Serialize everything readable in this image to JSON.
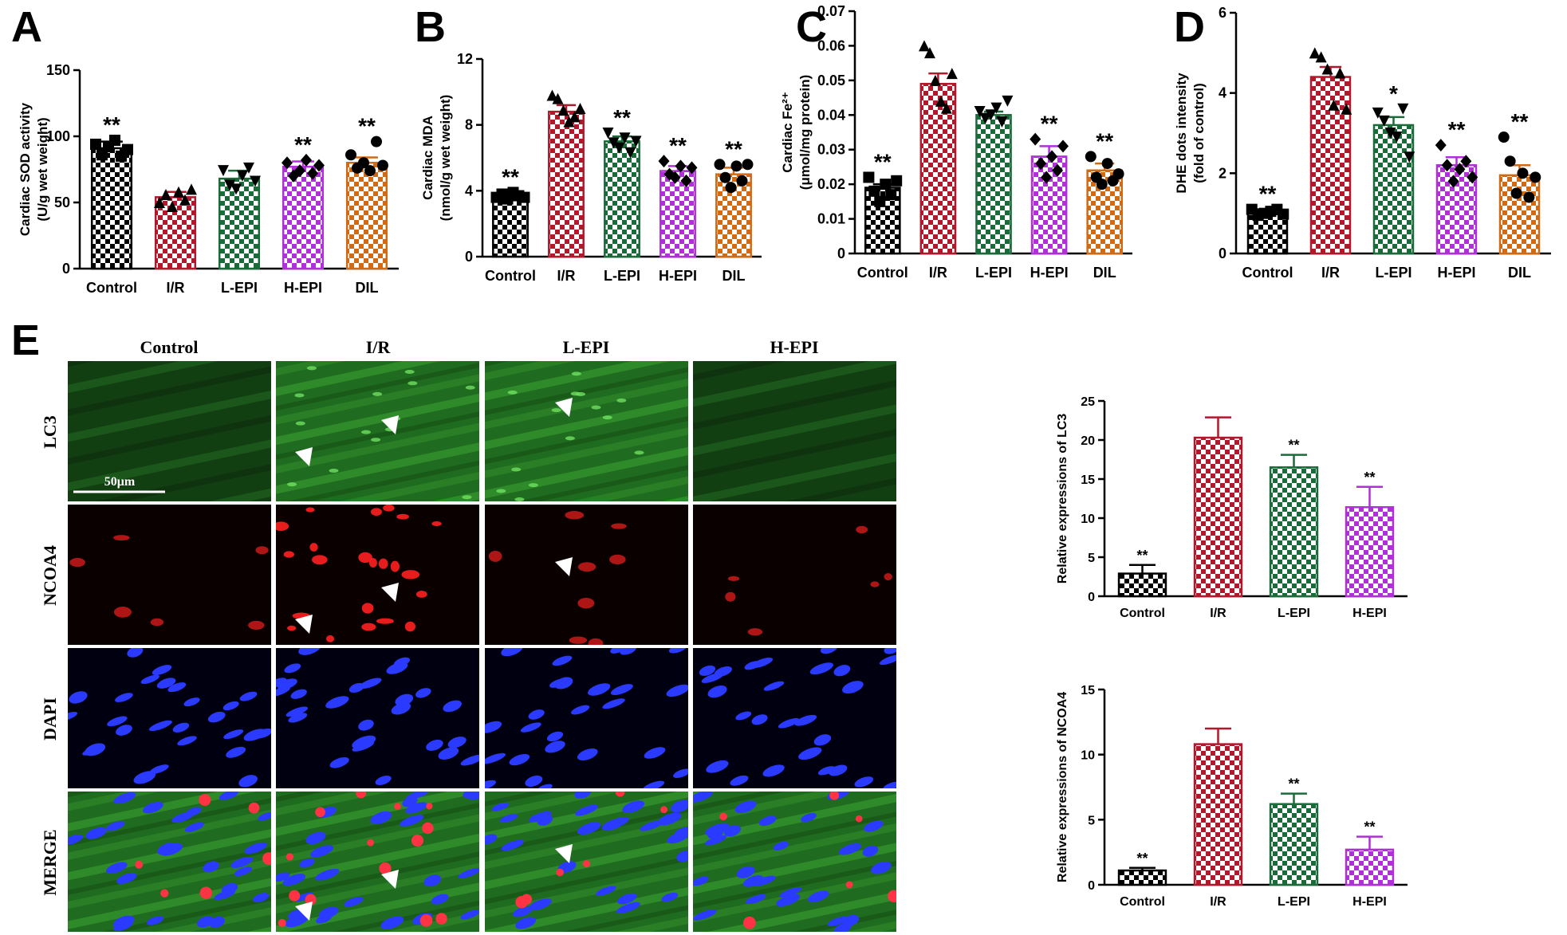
{
  "panels": {
    "a": "A",
    "b": "B",
    "c": "C",
    "d": "D",
    "e": "E"
  },
  "colors": {
    "control": "#000000",
    "ir": "#b2182b",
    "lepi": "#1b6b3a",
    "hepi": "#b030d8",
    "dil": "#d06a14"
  },
  "chart_data": [
    {
      "id": "A",
      "type": "bar",
      "categories": [
        "Control",
        "I/R",
        "L-EPI",
        "H-EPI",
        "DIL"
      ],
      "values": [
        91,
        54,
        68,
        77,
        80
      ],
      "errors": [
        5,
        4,
        6,
        4,
        4
      ],
      "sig": [
        "**",
        "",
        "",
        "**",
        "**"
      ],
      "ylabel": [
        "Cardiac SOD activity",
        "(U/g wet weight)"
      ],
      "ylim": [
        0,
        150
      ],
      "yticks": [
        0,
        50,
        100,
        150
      ],
      "markers": [
        "square",
        "triangle",
        "triangle-down",
        "diamond",
        "circle"
      ],
      "points": [
        [
          94,
          86,
          92,
          97,
          85,
          90
        ],
        [
          50,
          56,
          47,
          58,
          52,
          60
        ],
        [
          74,
          63,
          60,
          70,
          76,
          66
        ],
        [
          80,
          70,
          74,
          82,
          72,
          78
        ],
        [
          86,
          76,
          80,
          74,
          96,
          78
        ]
      ]
    },
    {
      "id": "B",
      "type": "bar",
      "categories": [
        "Control",
        "I/R",
        "L-EPI",
        "H-EPI",
        "DIL"
      ],
      "values": [
        3.7,
        8.8,
        7.0,
        5.2,
        5.0
      ],
      "errors": [
        0.2,
        0.4,
        0.3,
        0.3,
        0.4
      ],
      "sig": [
        "**",
        "",
        "**",
        "**",
        "**"
      ],
      "ylabel": [
        "Cardiac MDA",
        "(nmol/g wet weight)"
      ],
      "ylim": [
        0,
        12
      ],
      "yticks": [
        0,
        4,
        8,
        12
      ],
      "markers": [
        "square",
        "triangle",
        "triangle-down",
        "diamond",
        "circle"
      ],
      "points": [
        [
          3.6,
          3.8,
          3.5,
          3.9,
          3.7,
          3.6
        ],
        [
          9.8,
          9.6,
          8.9,
          8.2,
          8.5,
          9.0
        ],
        [
          7.5,
          6.9,
          6.6,
          7.2,
          6.3,
          7.0
        ],
        [
          5.8,
          5.0,
          4.8,
          5.5,
          4.6,
          5.4
        ],
        [
          5.6,
          4.8,
          4.2,
          5.5,
          4.6,
          5.6
        ]
      ]
    },
    {
      "id": "C",
      "type": "bar",
      "categories": [
        "Control",
        "I/R",
        "L-EPI",
        "H-EPI",
        "DIL"
      ],
      "values": [
        0.019,
        0.049,
        0.04,
        0.028,
        0.024
      ],
      "errors": [
        0.001,
        0.003,
        0.001,
        0.003,
        0.002
      ],
      "sig": [
        "**",
        "",
        "",
        "**",
        "**"
      ],
      "ylabel": [
        "Cardiac Fe²⁺",
        "(μmol/mg protein)"
      ],
      "ylim": [
        0,
        0.07
      ],
      "yticks": [
        0,
        0.01,
        0.02,
        0.03,
        0.04,
        0.05,
        0.06,
        0.07
      ],
      "markers": [
        "square",
        "triangle",
        "triangle-down",
        "diamond",
        "circle"
      ],
      "points": [
        [
          0.022,
          0.018,
          0.015,
          0.02,
          0.017,
          0.021
        ],
        [
          0.06,
          0.058,
          0.05,
          0.044,
          0.042,
          0.052
        ],
        [
          0.041,
          0.039,
          0.04,
          0.042,
          0.038,
          0.044
        ],
        [
          0.033,
          0.026,
          0.022,
          0.028,
          0.024,
          0.031
        ],
        [
          0.028,
          0.022,
          0.02,
          0.026,
          0.021,
          0.023
        ]
      ]
    },
    {
      "id": "D",
      "type": "bar",
      "categories": [
        "Control",
        "I/R",
        "L-EPI",
        "H-EPI",
        "DIL"
      ],
      "values": [
        1.05,
        4.4,
        3.2,
        2.2,
        1.95
      ],
      "errors": [
        0.05,
        0.25,
        0.2,
        0.2,
        0.25
      ],
      "sig": [
        "**",
        "",
        "*",
        "**",
        "**"
      ],
      "ylabel": [
        "DHE dots intensity",
        "(fold of control)"
      ],
      "ylim": [
        0,
        6
      ],
      "yticks": [
        0,
        2,
        4,
        6
      ],
      "markers": [
        "square",
        "triangle",
        "triangle-down",
        "diamond",
        "circle"
      ],
      "points": [
        [
          1.1,
          0.95,
          1.0,
          1.05,
          1.1,
          0.98
        ],
        [
          5.0,
          4.9,
          4.6,
          3.7,
          4.5,
          3.6
        ],
        [
          3.5,
          3.3,
          3.0,
          2.9,
          3.6,
          2.4
        ],
        [
          2.7,
          2.2,
          1.8,
          2.1,
          2.3,
          1.9
        ],
        [
          2.9,
          2.3,
          1.5,
          2.0,
          1.4,
          1.9
        ]
      ]
    },
    {
      "id": "LC3",
      "type": "bar",
      "categories": [
        "Control",
        "I/R",
        "L-EPI",
        "H-EPI"
      ],
      "values": [
        2.9,
        20.3,
        16.5,
        11.4
      ],
      "errors": [
        1.1,
        2.6,
        1.6,
        2.6
      ],
      "sig": [
        "**",
        "",
        "**",
        "**"
      ],
      "ylabel": [
        "Relative expressions of LC3"
      ],
      "ylim": [
        0,
        25
      ],
      "yticks": [
        0,
        5,
        10,
        15,
        20,
        25
      ]
    },
    {
      "id": "NCOA4",
      "type": "bar",
      "categories": [
        "Control",
        "I/R",
        "L-EPI",
        "H-EPI"
      ],
      "values": [
        1.1,
        10.8,
        6.2,
        2.7
      ],
      "errors": [
        0.2,
        1.2,
        0.8,
        1.0
      ],
      "sig": [
        "**",
        "",
        "**",
        "**"
      ],
      "ylabel": [
        "Relative expressions of NCOA4"
      ],
      "ylim": [
        0,
        15
      ],
      "yticks": [
        0,
        5,
        10,
        15
      ]
    }
  ],
  "microscopy": {
    "columns": [
      "Control",
      "I/R",
      "L-EPI",
      "H-EPI"
    ],
    "rows": [
      "LC3",
      "NCOA4",
      "DAPI",
      "MERGE"
    ],
    "scale_bar": "50μm"
  }
}
